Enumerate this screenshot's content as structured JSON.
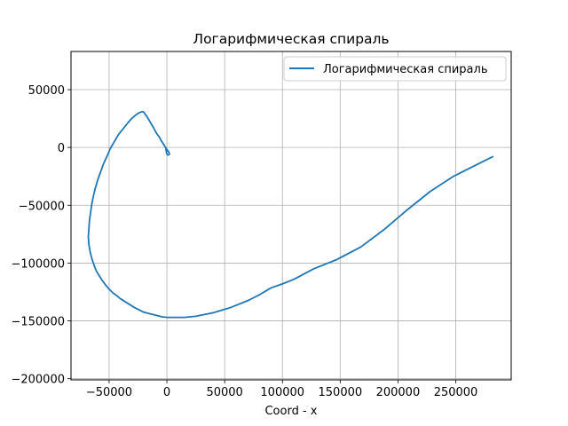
{
  "chart_data": {
    "type": "line",
    "title": "Логарифмическая спираль",
    "xlabel": "Coord - x",
    "ylabel": "",
    "xlim": [
      -83000,
      298000
    ],
    "ylim": [
      -201000,
      83000
    ],
    "x_ticks": [
      -50000,
      0,
      50000,
      100000,
      150000,
      200000,
      250000
    ],
    "y_ticks": [
      50000,
      0,
      -50000,
      -100000,
      -150000,
      -200000
    ],
    "x_tick_labels": [
      "−50000",
      "0",
      "50000",
      "100000",
      "150000",
      "200000",
      "250000"
    ],
    "y_tick_labels": [
      "50000",
      "0",
      "−50000",
      "−100000",
      "−150000",
      "−200000"
    ],
    "grid": true,
    "legend_position": "top-right",
    "series": [
      {
        "name": "Логарифмическая спираль",
        "color": "#1f77b4",
        "x": [
          -1000,
          -600,
          -100,
          700,
          1500,
          2200,
          2000,
          1300,
          0,
          -1500,
          -3000,
          -5000,
          -6500,
          -8500,
          -10000,
          -11500,
          -13000,
          -14500,
          -16000,
          -17500,
          -19000,
          -20000,
          -21000,
          -22000,
          -24000,
          -27000,
          -30500,
          -34000,
          -38000,
          -42000,
          -45500,
          -49000,
          -52000,
          -55000,
          -57500,
          -60000,
          -62000,
          -63500,
          -65000,
          -66000,
          -67000,
          -67500,
          -68000,
          -67500,
          -66500,
          -65000,
          -63000,
          -61000,
          -58500,
          -56000,
          -53000,
          -50000,
          -46500,
          -43000,
          -40000,
          -36000,
          -32000,
          -28000,
          -24000,
          -20000,
          -16000,
          -12000,
          -8000,
          -4000,
          0,
          5000,
          10000,
          15000,
          20000,
          25000,
          30000,
          35000,
          40000,
          45000,
          50000,
          55000,
          60000,
          65000,
          70000,
          75000,
          80000,
          85000,
          90000,
          100000,
          110000,
          127000,
          147000,
          168000,
          188000,
          208000,
          228000,
          248000,
          266000,
          276000,
          282000
        ],
        "y": [
          0,
          -3000,
          -5500,
          -6500,
          -6400,
          -5700,
          -4800,
          -3500,
          -1800,
          500,
          3000,
          6000,
          9000,
          11500,
          14000,
          17000,
          19500,
          22000,
          24500,
          27000,
          29000,
          30500,
          31000,
          30800,
          30000,
          28000,
          25000,
          21000,
          16000,
          11000,
          5000,
          -1000,
          -8000,
          -14500,
          -21500,
          -28500,
          -35500,
          -41500,
          -49000,
          -56000,
          -63000,
          -70000,
          -77000,
          -84000,
          -90000,
          -96000,
          -102000,
          -107000,
          -111000,
          -115000,
          -119000,
          -122500,
          -126000,
          -128500,
          -131000,
          -133500,
          -136000,
          -138500,
          -140500,
          -142500,
          -143500,
          -144500,
          -145500,
          -146500,
          -147000,
          -147000,
          -147000,
          -147000,
          -146500,
          -146000,
          -145000,
          -144000,
          -143000,
          -141500,
          -140000,
          -138500,
          -136500,
          -134500,
          -132500,
          -130000,
          -127500,
          -124500,
          -121500,
          -118000,
          -114000,
          -105000,
          -97000,
          -86000,
          -71000,
          -54000,
          -38000,
          -25000,
          -16000,
          -11000,
          -8000
        ]
      }
    ]
  }
}
